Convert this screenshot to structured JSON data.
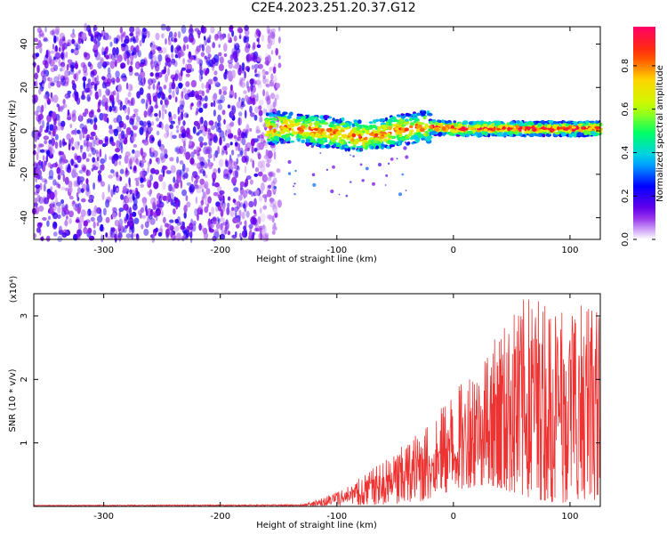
{
  "title": "C2E4.2023.251.20.37.G12",
  "chart_data": [
    {
      "type": "heatmap",
      "xlabel": "Height of straight line (km)",
      "ylabel": "Frequency (Hz)",
      "xlim": [
        -360,
        126
      ],
      "ylim": [
        -50,
        48
      ],
      "x_ticks": [
        -300,
        -200,
        -100,
        0,
        100
      ],
      "y_ticks": [
        -40,
        -20,
        0,
        20,
        40
      ],
      "colorbar": {
        "label": "Normalized spectral amplitude",
        "range": [
          0,
          0.98
        ],
        "ticks": [
          0.0,
          0.2,
          0.4,
          0.6,
          0.8
        ],
        "tick_labels": [
          "0.0",
          "0.2",
          "0.4",
          "0.6",
          "0.8"
        ],
        "colors": [
          "#ffffff",
          "#7a00e6",
          "#0000ff",
          "#00c8ff",
          "#00ff66",
          "#c8ff00",
          "#ffd400",
          "#ff3300",
          "#ff0066"
        ]
      },
      "regions": [
        {
          "description": "broadband scattered noise",
          "x_range": [
            -360,
            -157
          ],
          "y_range": [
            -50,
            48
          ],
          "amplitude": 0.15
        },
        {
          "description": "signal tone band",
          "x_range": [
            -160,
            126
          ],
          "center_frequency_hz": [
            [
              -150,
              2
            ],
            [
              -100,
              -1
            ],
            [
              -75,
              -3
            ],
            [
              -50,
              0
            ],
            [
              -25,
              2
            ],
            [
              0,
              1
            ],
            [
              50,
              1
            ],
            [
              126,
              1
            ]
          ],
          "amplitude": 0.9
        }
      ]
    },
    {
      "type": "line",
      "xlabel": "Height of straight line (km)",
      "ylabel": "SNR (10 * v/v)",
      "y_multiplier": "(x10⁴)",
      "xlim": [
        -360,
        126
      ],
      "ylim": [
        0,
        3.35
      ],
      "x_ticks": [
        -300,
        -200,
        -100,
        0,
        100
      ],
      "y_ticks": [
        1,
        2,
        3
      ],
      "color": "#ee3333",
      "envelope": [
        {
          "x": -360,
          "y_min": 0.01,
          "y_max": 0.02
        },
        {
          "x": -130,
          "y_min": 0.01,
          "y_max": 0.03
        },
        {
          "x": -110,
          "y_min": 0.01,
          "y_max": 0.15
        },
        {
          "x": -80,
          "y_min": 0.02,
          "y_max": 0.45
        },
        {
          "x": -50,
          "y_min": 0.03,
          "y_max": 0.85
        },
        {
          "x": -20,
          "y_min": 0.1,
          "y_max": 1.35
        },
        {
          "x": 0,
          "y_min": 0.25,
          "y_max": 1.8
        },
        {
          "x": 30,
          "y_min": 0.35,
          "y_max": 2.5
        },
        {
          "x": 60,
          "y_min": 0.15,
          "y_max": 3.3
        },
        {
          "x": 90,
          "y_min": 0.05,
          "y_max": 3.35
        },
        {
          "x": 126,
          "y_min": 0.1,
          "y_max": 3.1
        }
      ]
    }
  ]
}
